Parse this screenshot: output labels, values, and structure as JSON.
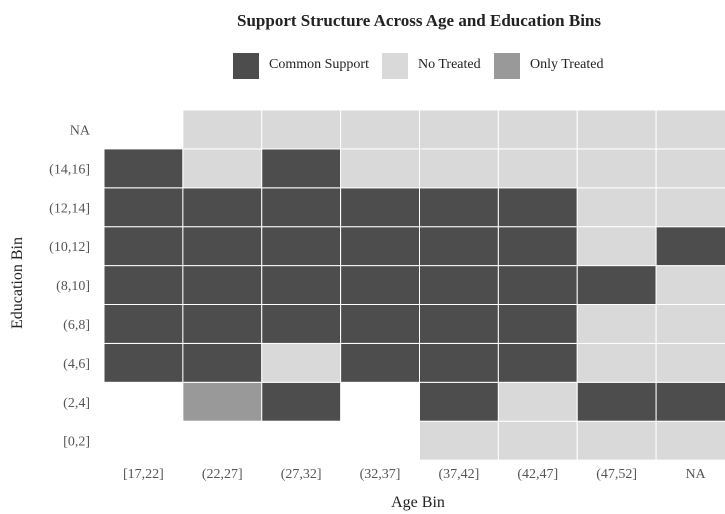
{
  "chart_data": {
    "type": "heatmap",
    "title": "Support Structure Across Age and Education Bins",
    "xlabel": "Age Bin",
    "ylabel": "Education Bin",
    "x_categories": [
      "[17,22]",
      "(22,27]",
      "(27,32]",
      "(32,37]",
      "(37,42]",
      "(42,47]",
      "(47,52]",
      "NA"
    ],
    "y_categories": [
      "[0,2]",
      "(2,4]",
      "(4,6]",
      "(6,8]",
      "(8,10]",
      "(10,12]",
      "(12,14]",
      "(14,16]",
      "NA"
    ],
    "legend": {
      "position": "top",
      "entries": [
        {
          "label": "Common Support",
          "color": "#4d4d4d"
        },
        {
          "label": "No Treated",
          "color": "#d9d9d9"
        },
        {
          "label": "Only Treated",
          "color": "#999999"
        }
      ]
    },
    "cells": [
      {
        "x": "(37,42]",
        "y": "[0,2]",
        "status": "No Treated"
      },
      {
        "x": "(42,47]",
        "y": "[0,2]",
        "status": "No Treated"
      },
      {
        "x": "(47,52]",
        "y": "[0,2]",
        "status": "No Treated"
      },
      {
        "x": "NA",
        "y": "[0,2]",
        "status": "No Treated"
      },
      {
        "x": "(22,27]",
        "y": "(2,4]",
        "status": "Only Treated"
      },
      {
        "x": "(27,32]",
        "y": "(2,4]",
        "status": "Common Support"
      },
      {
        "x": "(37,42]",
        "y": "(2,4]",
        "status": "Common Support"
      },
      {
        "x": "(42,47]",
        "y": "(2,4]",
        "status": "No Treated"
      },
      {
        "x": "(47,52]",
        "y": "(2,4]",
        "status": "Common Support"
      },
      {
        "x": "NA",
        "y": "(2,4]",
        "status": "Common Support"
      },
      {
        "x": "[17,22]",
        "y": "(4,6]",
        "status": "Common Support"
      },
      {
        "x": "(22,27]",
        "y": "(4,6]",
        "status": "Common Support"
      },
      {
        "x": "(27,32]",
        "y": "(4,6]",
        "status": "No Treated"
      },
      {
        "x": "(32,37]",
        "y": "(4,6]",
        "status": "Common Support"
      },
      {
        "x": "(37,42]",
        "y": "(4,6]",
        "status": "Common Support"
      },
      {
        "x": "(42,47]",
        "y": "(4,6]",
        "status": "Common Support"
      },
      {
        "x": "(47,52]",
        "y": "(4,6]",
        "status": "No Treated"
      },
      {
        "x": "NA",
        "y": "(4,6]",
        "status": "No Treated"
      },
      {
        "x": "[17,22]",
        "y": "(6,8]",
        "status": "Common Support"
      },
      {
        "x": "(22,27]",
        "y": "(6,8]",
        "status": "Common Support"
      },
      {
        "x": "(27,32]",
        "y": "(6,8]",
        "status": "Common Support"
      },
      {
        "x": "(32,37]",
        "y": "(6,8]",
        "status": "Common Support"
      },
      {
        "x": "(37,42]",
        "y": "(6,8]",
        "status": "Common Support"
      },
      {
        "x": "(42,47]",
        "y": "(6,8]",
        "status": "Common Support"
      },
      {
        "x": "(47,52]",
        "y": "(6,8]",
        "status": "No Treated"
      },
      {
        "x": "NA",
        "y": "(6,8]",
        "status": "No Treated"
      },
      {
        "x": "[17,22]",
        "y": "(8,10]",
        "status": "Common Support"
      },
      {
        "x": "(22,27]",
        "y": "(8,10]",
        "status": "Common Support"
      },
      {
        "x": "(27,32]",
        "y": "(8,10]",
        "status": "Common Support"
      },
      {
        "x": "(32,37]",
        "y": "(8,10]",
        "status": "Common Support"
      },
      {
        "x": "(37,42]",
        "y": "(8,10]",
        "status": "Common Support"
      },
      {
        "x": "(42,47]",
        "y": "(8,10]",
        "status": "Common Support"
      },
      {
        "x": "(47,52]",
        "y": "(8,10]",
        "status": "Common Support"
      },
      {
        "x": "NA",
        "y": "(8,10]",
        "status": "No Treated"
      },
      {
        "x": "[17,22]",
        "y": "(10,12]",
        "status": "Common Support"
      },
      {
        "x": "(22,27]",
        "y": "(10,12]",
        "status": "Common Support"
      },
      {
        "x": "(27,32]",
        "y": "(10,12]",
        "status": "Common Support"
      },
      {
        "x": "(32,37]",
        "y": "(10,12]",
        "status": "Common Support"
      },
      {
        "x": "(37,42]",
        "y": "(10,12]",
        "status": "Common Support"
      },
      {
        "x": "(42,47]",
        "y": "(10,12]",
        "status": "Common Support"
      },
      {
        "x": "(47,52]",
        "y": "(10,12]",
        "status": "No Treated"
      },
      {
        "x": "NA",
        "y": "(10,12]",
        "status": "Common Support"
      },
      {
        "x": "[17,22]",
        "y": "(12,14]",
        "status": "Common Support"
      },
      {
        "x": "(22,27]",
        "y": "(12,14]",
        "status": "Common Support"
      },
      {
        "x": "(27,32]",
        "y": "(12,14]",
        "status": "Common Support"
      },
      {
        "x": "(32,37]",
        "y": "(12,14]",
        "status": "Common Support"
      },
      {
        "x": "(37,42]",
        "y": "(12,14]",
        "status": "Common Support"
      },
      {
        "x": "(42,47]",
        "y": "(12,14]",
        "status": "Common Support"
      },
      {
        "x": "(47,52]",
        "y": "(12,14]",
        "status": "No Treated"
      },
      {
        "x": "NA",
        "y": "(12,14]",
        "status": "No Treated"
      },
      {
        "x": "[17,22]",
        "y": "(14,16]",
        "status": "Common Support"
      },
      {
        "x": "(22,27]",
        "y": "(14,16]",
        "status": "No Treated"
      },
      {
        "x": "(27,32]",
        "y": "(14,16]",
        "status": "Common Support"
      },
      {
        "x": "(32,37]",
        "y": "(14,16]",
        "status": "No Treated"
      },
      {
        "x": "(37,42]",
        "y": "(14,16]",
        "status": "No Treated"
      },
      {
        "x": "(42,47]",
        "y": "(14,16]",
        "status": "No Treated"
      },
      {
        "x": "(47,52]",
        "y": "(14,16]",
        "status": "No Treated"
      },
      {
        "x": "NA",
        "y": "(14,16]",
        "status": "No Treated"
      },
      {
        "x": "(22,27]",
        "y": "NA",
        "status": "No Treated"
      },
      {
        "x": "(27,32]",
        "y": "NA",
        "status": "No Treated"
      },
      {
        "x": "(32,37]",
        "y": "NA",
        "status": "No Treated"
      },
      {
        "x": "(37,42]",
        "y": "NA",
        "status": "No Treated"
      },
      {
        "x": "(42,47]",
        "y": "NA",
        "status": "No Treated"
      },
      {
        "x": "(47,52]",
        "y": "NA",
        "status": "No Treated"
      },
      {
        "x": "NA",
        "y": "NA",
        "status": "No Treated"
      }
    ]
  }
}
